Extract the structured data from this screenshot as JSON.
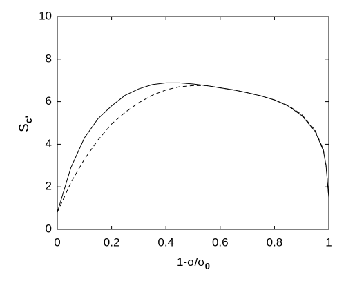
{
  "chart_data": {
    "type": "line",
    "xlabel": [
      "1-σ/σ",
      "0"
    ],
    "ylabel": [
      "S",
      "c'"
    ],
    "x": [
      0,
      0.05,
      0.1,
      0.15,
      0.2,
      0.25,
      0.3,
      0.35,
      0.4,
      0.45,
      0.5,
      0.55,
      0.6,
      0.65,
      0.7,
      0.75,
      0.8,
      0.85,
      0.9,
      0.95,
      0.98,
      0.99,
      1
    ],
    "series": [
      {
        "color": "#000000",
        "line_style": "solid",
        "values": [
          0.8,
          2.9,
          4.3,
          5.2,
          5.8,
          6.3,
          6.6,
          6.8,
          6.88,
          6.88,
          6.83,
          6.75,
          6.65,
          6.55,
          6.42,
          6.27,
          6.08,
          5.8,
          5.35,
          4.6,
          3.7,
          3.0,
          1.5
        ]
      },
      {
        "color": "#000000",
        "line_style": "dashed",
        "values": [
          0.8,
          2.2,
          3.3,
          4.2,
          4.95,
          5.5,
          5.95,
          6.3,
          6.55,
          6.7,
          6.75,
          6.75,
          6.65,
          6.55,
          6.42,
          6.27,
          6.08,
          5.82,
          5.4,
          4.65,
          3.75,
          3.0,
          1.5
        ]
      }
    ],
    "xlim": [
      0,
      1
    ],
    "xticks": [
      0,
      0.2,
      0.4,
      0.6,
      0.8,
      1
    ],
    "ylim": [
      0,
      10
    ],
    "yticks": [
      0,
      2,
      4,
      6,
      8,
      10
    ],
    "grid": false
  }
}
